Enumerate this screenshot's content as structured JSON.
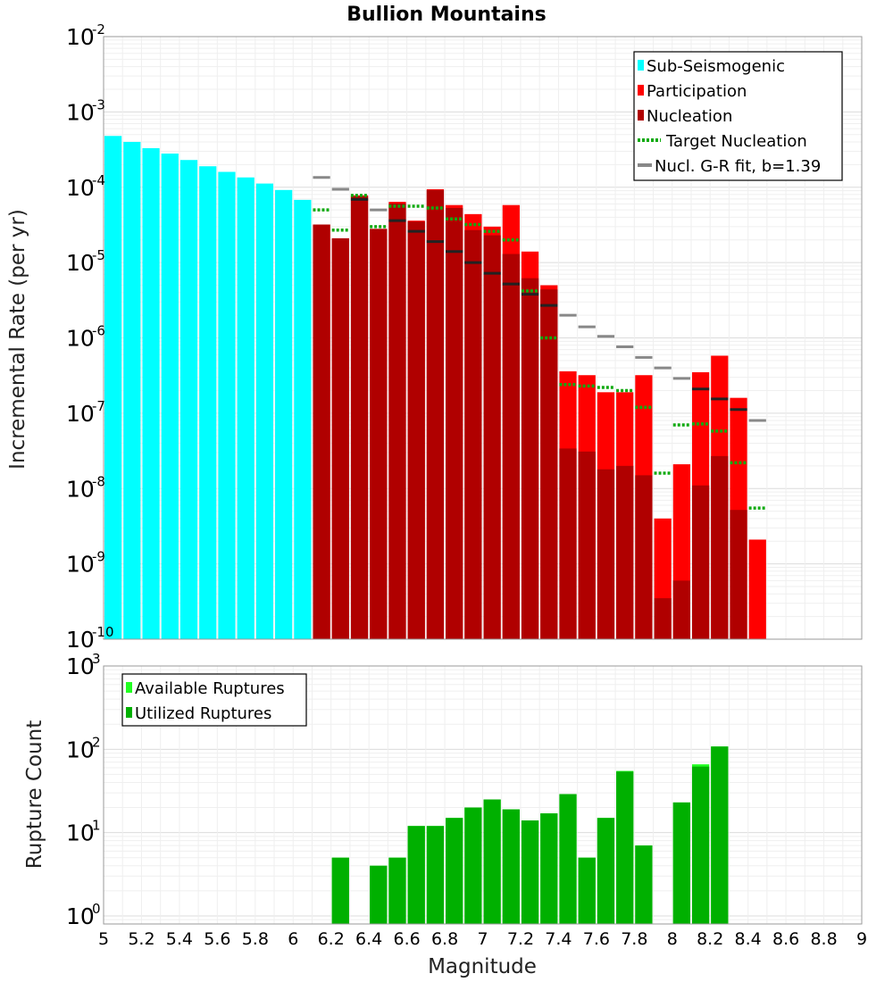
{
  "title": "Bullion Mountains",
  "colors": {
    "sub_seismogenic": "#00ffff",
    "participation": "#ff0000",
    "nucleation": "#b00000",
    "target_nucleation": "#11aa11",
    "gr_fit": "#888888",
    "gr_fit_nucl": "#222222",
    "available": "#22ff22",
    "utilized": "#00b000"
  },
  "chart_data": [
    {
      "type": "bar",
      "name": "incremental-rate",
      "xlabel": "Magnitude",
      "ylabel": "Incremental Rate (per yr)",
      "xlim": [
        5,
        9
      ],
      "ylim": [
        1e-10,
        0.01
      ],
      "yscale": "log",
      "grid": true,
      "legend_position": "top-right",
      "bin_width": 0.1,
      "x": [
        5.05,
        5.15,
        5.25,
        5.35,
        5.45,
        5.55,
        5.65,
        5.75,
        5.85,
        5.95,
        6.05,
        6.15,
        6.25,
        6.35,
        6.45,
        6.55,
        6.65,
        6.75,
        6.85,
        6.95,
        7.05,
        7.15,
        7.25,
        7.35,
        7.45,
        7.55,
        7.65,
        7.75,
        7.85,
        7.95,
        8.05,
        8.15,
        8.25,
        8.35,
        8.45
      ],
      "series": [
        {
          "name": "Sub-Seismogenic",
          "style": "bar",
          "values": [
            0.00048,
            0.0004,
            0.00033,
            0.00028,
            0.00023,
            0.00019,
            0.00016,
            0.000135,
            0.000112,
            9.2e-05,
            6.8e-05,
            null,
            null,
            null,
            null,
            null,
            null,
            null,
            null,
            null,
            null,
            null,
            null,
            null,
            null,
            null,
            null,
            null,
            null,
            null,
            null,
            null,
            null,
            null,
            null
          ]
        },
        {
          "name": "Participation",
          "style": "bar",
          "values": [
            null,
            null,
            null,
            null,
            null,
            null,
            null,
            null,
            null,
            null,
            null,
            3.2e-05,
            2.1e-05,
            7.8e-05,
            2.8e-05,
            6.4e-05,
            3.6e-05,
            9.4e-05,
            5.8e-05,
            4.4e-05,
            3e-05,
            5.8e-05,
            1.4e-05,
            5e-06,
            3.6e-07,
            3.2e-07,
            1.9e-07,
            1.9e-07,
            3.2e-07,
            4e-09,
            2.1e-08,
            3.5e-07,
            5.8e-07,
            1.6e-07,
            2.1e-09
          ]
        },
        {
          "name": "Nucleation",
          "style": "bar",
          "values": [
            null,
            null,
            null,
            null,
            null,
            null,
            null,
            null,
            null,
            null,
            null,
            3.2e-05,
            2.1e-05,
            7.6e-05,
            2.8e-05,
            6.1e-05,
            3.5e-05,
            9.2e-05,
            5.3e-05,
            2.7e-05,
            2.3e-05,
            1.3e-05,
            6.2e-06,
            4.4e-06,
            3.4e-08,
            3.1e-08,
            1.8e-08,
            2e-08,
            1.5e-08,
            3.5e-10,
            6e-10,
            1.1e-08,
            2.7e-08,
            5.2e-09,
            null
          ]
        },
        {
          "name": "Target Nucleation",
          "style": "dotted-step",
          "values": [
            null,
            null,
            null,
            null,
            null,
            null,
            null,
            null,
            null,
            null,
            null,
            5e-05,
            2.7e-05,
            7.8e-05,
            3e-05,
            5.6e-05,
            5.6e-05,
            5.3e-05,
            3.8e-05,
            3.2e-05,
            2.6e-05,
            2e-05,
            4.2e-06,
            1e-06,
            2.4e-07,
            2.3e-07,
            2.2e-07,
            2e-07,
            1.2e-07,
            1.6e-08,
            7e-08,
            7.2e-08,
            5.8e-08,
            2.2e-08,
            5.5e-09
          ]
        },
        {
          "name": "Nucl. G-R fit, b=1.39",
          "style": "solid-step",
          "values": [
            null,
            null,
            null,
            null,
            null,
            null,
            null,
            null,
            null,
            null,
            null,
            0.000135,
            9.4e-05,
            6.9e-05,
            5e-05,
            3.6e-05,
            2.6e-05,
            1.9e-05,
            1.4e-05,
            1e-05,
            7.2e-06,
            5.2e-06,
            3.8e-06,
            2.7e-06,
            2e-06,
            1.4e-06,
            1.05e-06,
            7.6e-07,
            5.5e-07,
            4e-07,
            2.9e-07,
            2.1e-07,
            1.55e-07,
            1.12e-07,
            8e-08
          ]
        }
      ]
    },
    {
      "type": "bar",
      "name": "rupture-count",
      "xlabel": "Magnitude",
      "ylabel": "Rupture Count",
      "xlim": [
        5,
        9
      ],
      "ylim": [
        0.8,
        1000
      ],
      "yscale": "log",
      "grid": true,
      "legend_position": "top-left",
      "bin_width": 0.1,
      "x": [
        6.25,
        6.45,
        6.55,
        6.65,
        6.75,
        6.85,
        6.95,
        7.05,
        7.15,
        7.25,
        7.35,
        7.45,
        7.55,
        7.65,
        7.75,
        7.85,
        8.05,
        8.15,
        8.25
      ],
      "series": [
        {
          "name": "Available Ruptures",
          "values": [
            5,
            4,
            5,
            12,
            12,
            15,
            20,
            25,
            19,
            14,
            17,
            29,
            5,
            15,
            55,
            7,
            23,
            66,
            108
          ]
        },
        {
          "name": "Utilized Ruptures",
          "values": [
            5,
            4,
            5,
            12,
            12,
            15,
            20,
            25,
            19,
            14,
            17,
            29,
            5,
            15,
            54,
            7,
            23,
            62,
            108
          ]
        }
      ]
    }
  ]
}
